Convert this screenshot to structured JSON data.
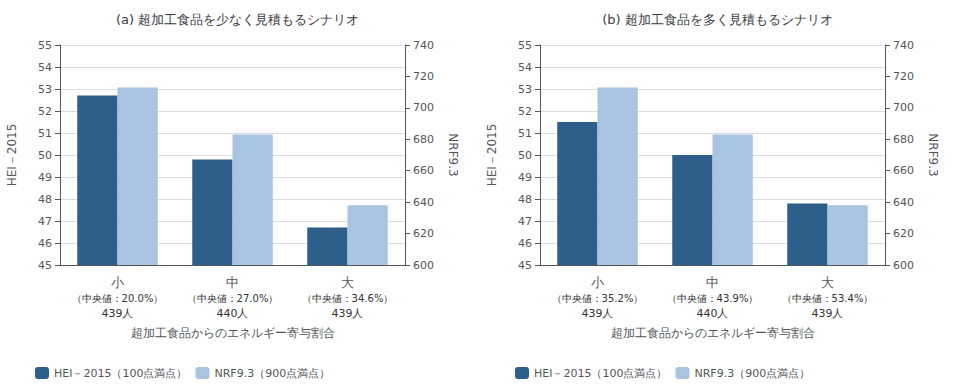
{
  "chart_data": [
    {
      "type": "bar",
      "title": "(a) 超加工食品を少なく見積もるシナリオ",
      "categories": [
        "小",
        "中",
        "大"
      ],
      "series": [
        {
          "name": "HEI－2015（100点満点）",
          "color": "#2E5F8A",
          "values": [
            52.7,
            49.8,
            46.7
          ]
        },
        {
          "name": "NRF9.3（900点満点）",
          "color": "#A8C4E0",
          "values": [
            713,
            683,
            638
          ],
          "axis": "y2"
        }
      ],
      "annotations": [
        {
          "category": "小",
          "texts": [
            "（中央値：20.0%）",
            "439人"
          ]
        },
        {
          "category": "中",
          "texts": [
            "（中央値：27.0%）",
            "440人"
          ]
        },
        {
          "category": "大",
          "texts": [
            "（中央値：34.6%）",
            "439人"
          ]
        }
      ],
      "xlabel": "超加工食品からのエネルギー寄与割合",
      "ylabel": "HEI－2015",
      "y2label": "NRF9.3",
      "ylim": [
        45,
        55
      ],
      "yticks": [
        45,
        46,
        47,
        48,
        49,
        50,
        51,
        52,
        53,
        54,
        55
      ],
      "y2lim": [
        600,
        740
      ],
      "y2ticks": [
        600,
        620,
        640,
        660,
        680,
        700,
        720,
        740
      ],
      "grid": true,
      "legend": "lower left"
    },
    {
      "type": "bar",
      "title": "(b) 超加工食品を多く見積もるシナリオ",
      "categories": [
        "小",
        "中",
        "大"
      ],
      "series": [
        {
          "name": "HEI－2015（100点満点）",
          "color": "#2E5F8A",
          "values": [
            51.5,
            50.0,
            47.8
          ]
        },
        {
          "name": "NRF9.3（900点満点）",
          "color": "#A8C4E0",
          "values": [
            713,
            683,
            638
          ],
          "axis": "y2"
        }
      ],
      "annotations": [
        {
          "category": "小",
          "texts": [
            "（中央値：35.2%）",
            "439人"
          ]
        },
        {
          "category": "中",
          "texts": [
            "（中央値：43.9%）",
            "440人"
          ]
        },
        {
          "category": "大",
          "texts": [
            "（中央値：53.4%）",
            "439人"
          ]
        }
      ],
      "xlabel": "超加工食品からのエネルギー寄与割合",
      "ylabel": "HEI－2015",
      "y2label": "NRF9.3",
      "ylim": [
        45,
        55
      ],
      "yticks": [
        45,
        46,
        47,
        48,
        49,
        50,
        51,
        52,
        53,
        54,
        55
      ],
      "y2lim": [
        600,
        740
      ],
      "y2ticks": [
        600,
        620,
        640,
        660,
        680,
        700,
        720,
        740
      ],
      "grid": true,
      "legend": "lower left"
    }
  ]
}
